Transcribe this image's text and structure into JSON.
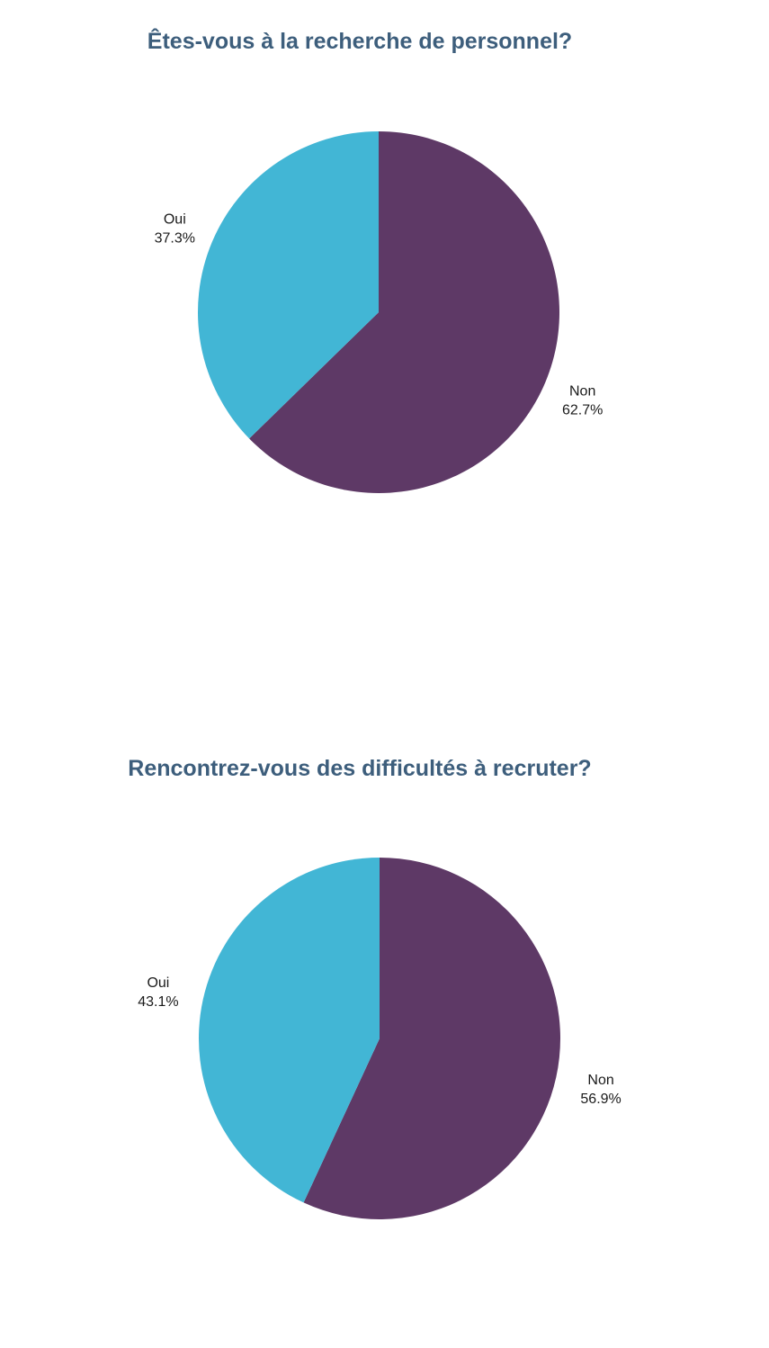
{
  "chart_data": [
    {
      "type": "pie",
      "title": "Êtes-vous à la recherche de personnel?",
      "categories": [
        "Non",
        "Oui"
      ],
      "values": [
        62.7,
        37.3
      ],
      "value_labels": [
        "62.7%",
        "37.3%"
      ],
      "colors": [
        "#5e3966",
        "#42b6d5"
      ],
      "start_angle_deg": 0,
      "direction": "clockwise"
    },
    {
      "type": "pie",
      "title": "Rencontrez-vous des difficultés à recruter?",
      "categories": [
        "Non",
        "Oui"
      ],
      "values": [
        56.9,
        43.1
      ],
      "value_labels": [
        "56.9%",
        "43.1%"
      ],
      "colors": [
        "#5e3966",
        "#42b6d5"
      ],
      "start_angle_deg": 0,
      "direction": "clockwise"
    }
  ]
}
